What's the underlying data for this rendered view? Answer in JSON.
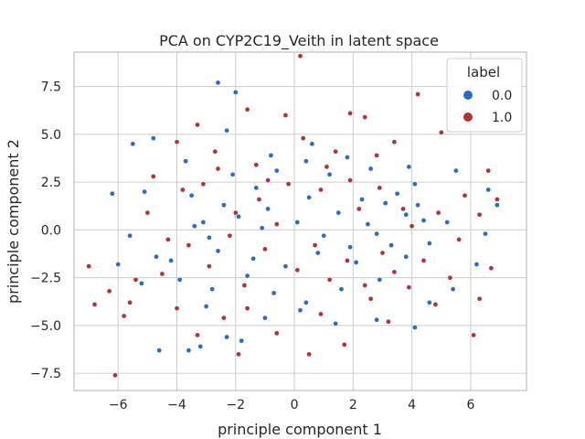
{
  "chart_data": {
    "type": "scatter",
    "title": "PCA on CYP2C19_Veith in latent space",
    "xlabel": "principle component 1",
    "ylabel": "principle component 2",
    "xlim": [
      -7.5,
      7.9
    ],
    "ylim": [
      -8.4,
      9.3
    ],
    "xticks": [
      -6,
      -4,
      -2,
      0,
      2,
      4,
      6
    ],
    "yticks": [
      -7.5,
      -5.0,
      -2.5,
      0.0,
      2.5,
      5.0,
      7.5
    ],
    "xtick_labels": [
      "−6",
      "−4",
      "−2",
      "0",
      "2",
      "4",
      "6"
    ],
    "ytick_labels": [
      "−7.5",
      "−5.0",
      "−2.5",
      "0.0",
      "2.5",
      "5.0",
      "7.5"
    ],
    "grid": true,
    "legend": {
      "title": "label",
      "placement": "top-right",
      "entries": [
        "0.0",
        "1.0"
      ]
    },
    "colors": {
      "0.0": "#2b6bc4",
      "1.0": "#b2323a"
    },
    "series": [
      {
        "name": "0.0",
        "points": [
          [
            -2.6,
            7.7
          ],
          [
            -2.0,
            7.2
          ],
          [
            -5.5,
            4.5
          ],
          [
            -4.8,
            4.8
          ],
          [
            -2.3,
            5.2
          ],
          [
            -3.7,
            3.6
          ],
          [
            -6.2,
            1.9
          ],
          [
            -5.1,
            2.0
          ],
          [
            -5.6,
            -0.3
          ],
          [
            -6.0,
            -1.8
          ],
          [
            -5.2,
            -2.8
          ],
          [
            -4.6,
            -6.3
          ],
          [
            -3.2,
            -6.1
          ],
          [
            -2.3,
            -5.6
          ],
          [
            -3.6,
            -6.3
          ],
          [
            -1.8,
            -5.8
          ],
          [
            -3.0,
            -4.0
          ],
          [
            -4.2,
            -1.6
          ],
          [
            -3.1,
            0.4
          ],
          [
            -2.4,
            1.3
          ],
          [
            -1.3,
            2.2
          ],
          [
            -0.6,
            3.1
          ],
          [
            0.4,
            3.6
          ],
          [
            1.2,
            2.9
          ],
          [
            2.3,
            1.6
          ],
          [
            3.1,
            1.4
          ],
          [
            3.8,
            0.8
          ],
          [
            4.4,
            0.5
          ],
          [
            5.2,
            0.4
          ],
          [
            4.6,
            -0.7
          ],
          [
            3.8,
            -1.4
          ],
          [
            2.9,
            -2.6
          ],
          [
            1.6,
            -3.1
          ],
          [
            0.4,
            -3.8
          ],
          [
            -0.7,
            -3.3
          ],
          [
            -1.6,
            -2.4
          ],
          [
            -2.6,
            -1.1
          ],
          [
            -3.4,
            0.2
          ],
          [
            -1.9,
            0.7
          ],
          [
            -0.9,
            1.1
          ],
          [
            0.1,
            0.4
          ],
          [
            1.0,
            -0.3
          ],
          [
            1.9,
            -0.9
          ],
          [
            2.8,
            -0.2
          ],
          [
            3.5,
            1.9
          ],
          [
            4.1,
            2.4
          ],
          [
            5.5,
            3.1
          ],
          [
            6.6,
            2.1
          ],
          [
            6.9,
            1.3
          ],
          [
            6.5,
            -0.2
          ],
          [
            6.2,
            -1.8
          ],
          [
            5.4,
            -3.1
          ],
          [
            4.6,
            -3.8
          ],
          [
            4.1,
            -5.1
          ],
          [
            2.8,
            -4.7
          ],
          [
            1.4,
            -4.9
          ],
          [
            0.2,
            -4.2
          ],
          [
            -1.0,
            -4.6
          ],
          [
            -2.8,
            -3.1
          ],
          [
            -3.9,
            -2.6
          ],
          [
            -4.7,
            -1.4
          ],
          [
            -3.5,
            1.8
          ],
          [
            -2.1,
            2.9
          ],
          [
            -0.8,
            3.9
          ],
          [
            0.6,
            4.5
          ],
          [
            1.8,
            3.8
          ],
          [
            2.6,
            3.2
          ],
          [
            3.9,
            3.3
          ],
          [
            4.2,
            1.3
          ],
          [
            -1.4,
            -1.5
          ],
          [
            -0.3,
            -1.9
          ],
          [
            0.8,
            -1.2
          ],
          [
            2.1,
            -1.7
          ],
          [
            3.3,
            -0.8
          ],
          [
            -2.9,
            -0.4
          ],
          [
            -1.1,
            0.1
          ],
          [
            0.5,
            1.7
          ],
          [
            1.5,
            0.9
          ],
          [
            2.5,
            0.3
          ]
        ]
      },
      {
        "name": "1.0",
        "points": [
          [
            0.2,
            9.1
          ],
          [
            4.2,
            7.1
          ],
          [
            -6.1,
            -7.6
          ],
          [
            -7.0,
            -1.9
          ],
          [
            -6.8,
            -3.9
          ],
          [
            -6.3,
            -3.2
          ],
          [
            -5.6,
            -3.8
          ],
          [
            -5.8,
            -4.5
          ],
          [
            -4.8,
            2.8
          ],
          [
            -4.0,
            4.6
          ],
          [
            -3.3,
            5.5
          ],
          [
            -1.6,
            6.3
          ],
          [
            -0.3,
            6.0
          ],
          [
            1.9,
            6.1
          ],
          [
            2.4,
            5.9
          ],
          [
            3.4,
            4.6
          ],
          [
            5.0,
            5.1
          ],
          [
            6.6,
            3.1
          ],
          [
            6.9,
            1.6
          ],
          [
            6.3,
            0.8
          ],
          [
            6.7,
            -2.0
          ],
          [
            6.3,
            -3.6
          ],
          [
            6.1,
            -5.5
          ],
          [
            4.8,
            -3.9
          ],
          [
            3.2,
            -4.8
          ],
          [
            1.7,
            -6.0
          ],
          [
            0.5,
            -6.5
          ],
          [
            -1.9,
            -6.5
          ],
          [
            -3.3,
            -5.5
          ],
          [
            -4.0,
            -4.1
          ],
          [
            -4.5,
            -2.3
          ],
          [
            -3.6,
            -0.8
          ],
          [
            -2.2,
            -0.3
          ],
          [
            -1.2,
            1.6
          ],
          [
            -0.2,
            2.4
          ],
          [
            0.9,
            2.1
          ],
          [
            1.9,
            2.6
          ],
          [
            2.9,
            2.2
          ],
          [
            3.7,
            1.1
          ],
          [
            4.9,
            0.9
          ],
          [
            5.6,
            -0.5
          ],
          [
            4.4,
            -1.6
          ],
          [
            3.4,
            -2.2
          ],
          [
            2.4,
            -2.9
          ],
          [
            1.2,
            -2.6
          ],
          [
            0.1,
            -2.1
          ],
          [
            -1.0,
            -1.0
          ],
          [
            -2.0,
            0.9
          ],
          [
            -3.1,
            2.4
          ],
          [
            -2.7,
            4.1
          ],
          [
            -1.3,
            3.4
          ],
          [
            0.3,
            4.8
          ],
          [
            1.4,
            4.1
          ],
          [
            2.8,
            3.9
          ],
          [
            4.0,
            0.2
          ],
          [
            3.0,
            -1.2
          ],
          [
            1.8,
            -1.6
          ],
          [
            0.7,
            -0.8
          ],
          [
            -0.6,
            0.3
          ],
          [
            -1.7,
            -2.9
          ],
          [
            -2.4,
            -4.6
          ],
          [
            -4.3,
            -0.5
          ],
          [
            -5.0,
            0.9
          ],
          [
            -3.8,
            2.1
          ],
          [
            -2.6,
            3.2
          ],
          [
            -0.9,
            2.6
          ],
          [
            1.1,
            3.3
          ],
          [
            2.2,
            1.1
          ],
          [
            3.9,
            -3.0
          ],
          [
            2.6,
            -3.6
          ],
          [
            0.9,
            -4.4
          ],
          [
            -0.6,
            -5.4
          ],
          [
            -1.6,
            -4.1
          ],
          [
            -2.9,
            -1.9
          ],
          [
            5.8,
            1.8
          ],
          [
            5.3,
            -2.5
          ],
          [
            -5.4,
            -2.6
          ]
        ]
      }
    ]
  }
}
